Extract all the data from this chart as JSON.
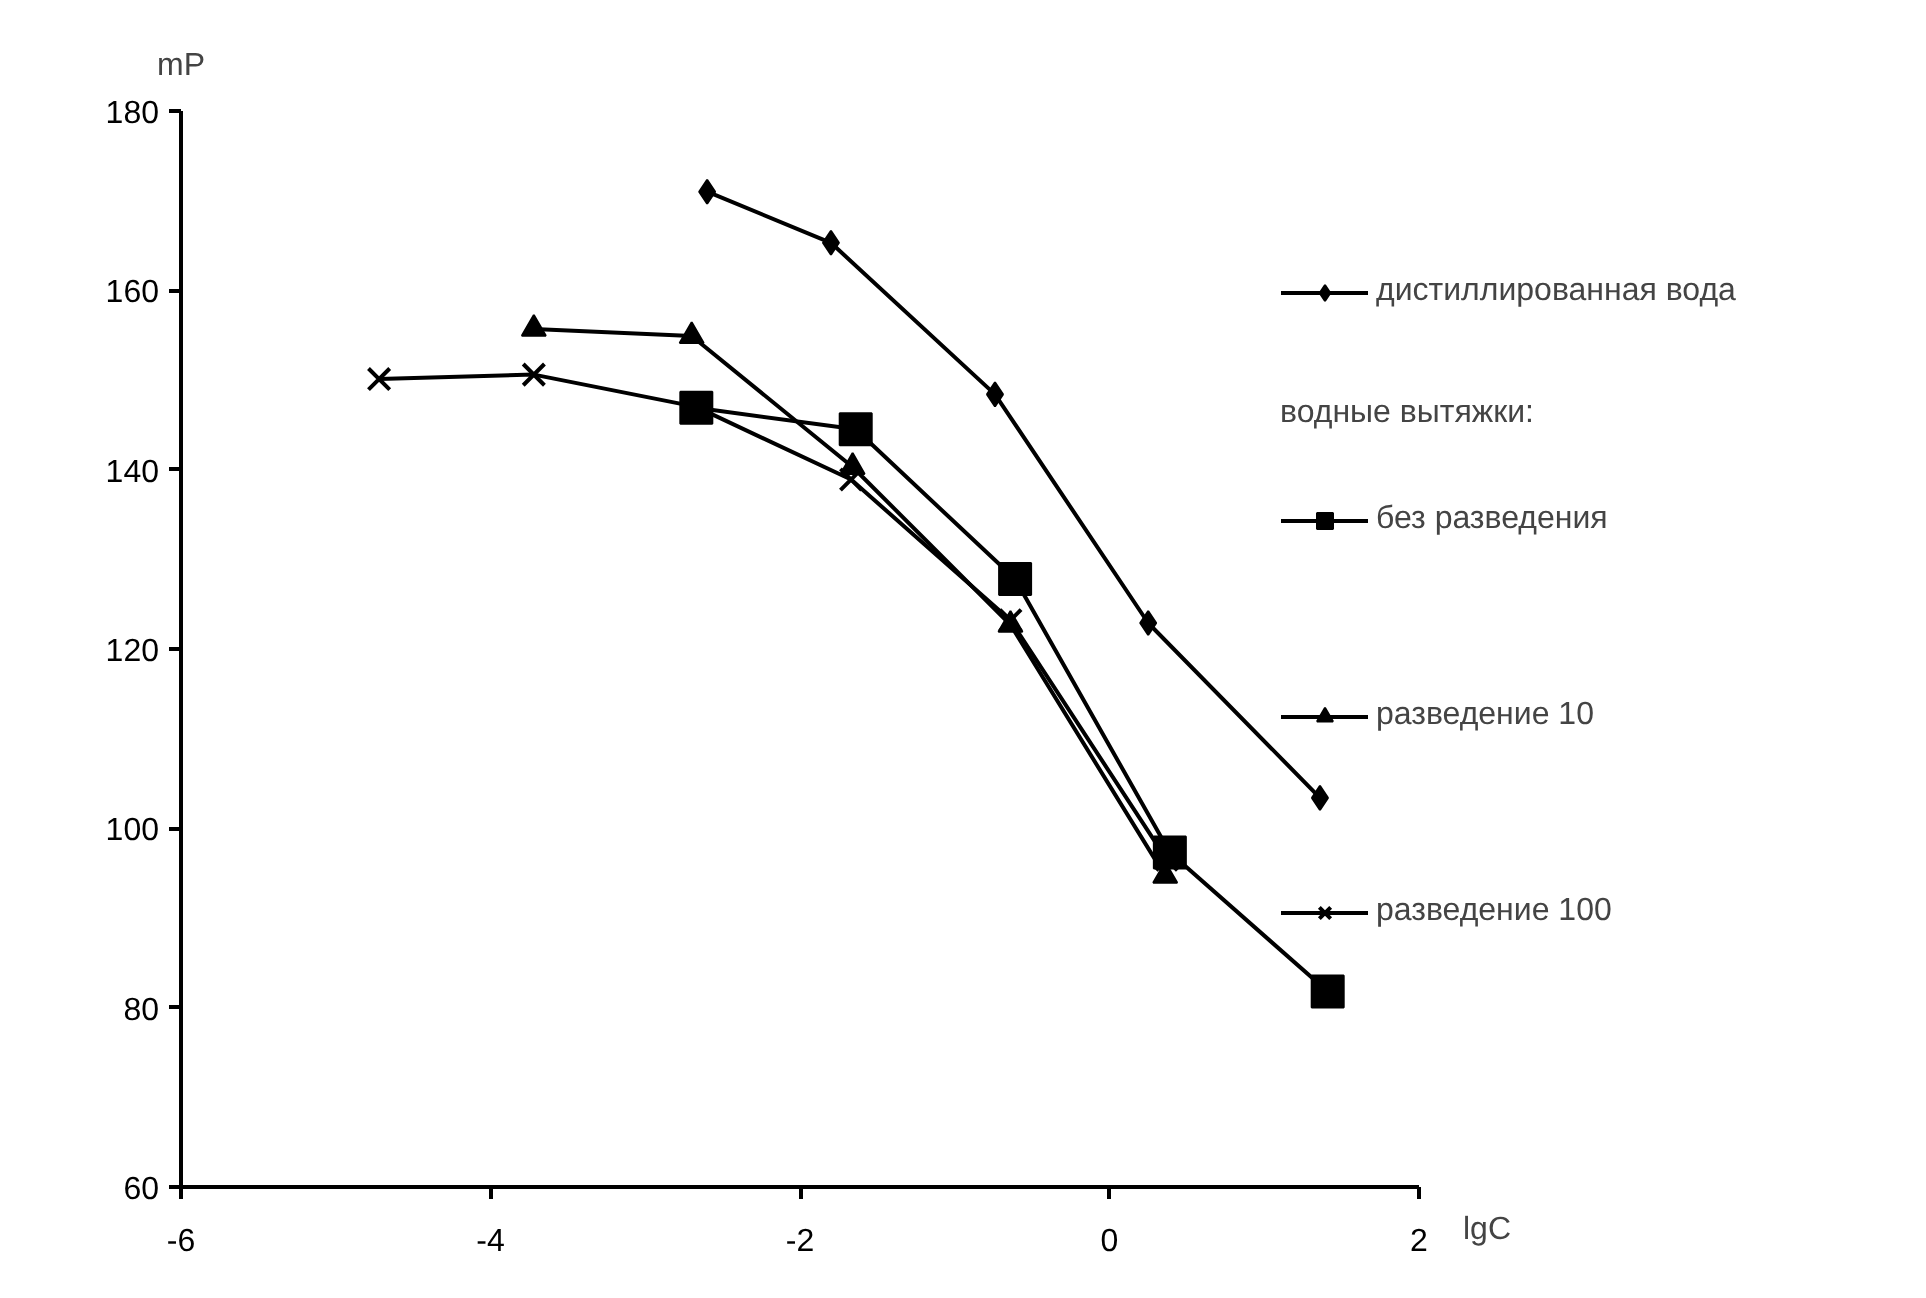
{
  "chart_data": {
    "type": "line",
    "xlabel": "lgC",
    "ylabel": "mP",
    "xlim": [
      -6,
      2
    ],
    "xticks": [
      -6,
      -4,
      -2,
      0,
      2
    ],
    "ylim": [
      60,
      180
    ],
    "yticks": [
      60,
      80,
      100,
      120,
      140,
      160,
      180
    ],
    "grid": false,
    "legend": "right",
    "legend_title": "водные вытяжки:",
    "line_style": "solid",
    "series": [
      {
        "name": "дистиллированная вода",
        "color": "#000000",
        "marker": "diamond",
        "x": [
          -2.6,
          -1.8,
          -0.74,
          0.25,
          1.36
        ],
        "values": [
          171,
          165.3,
          148.4,
          122.9,
          103.4
        ]
      },
      {
        "name": "без разведения",
        "color": "#000000",
        "marker": "square",
        "x": [
          -2.67,
          -1.64,
          -0.61,
          0.39,
          1.41
        ],
        "values": [
          146.9,
          144.5,
          127.8,
          97.3,
          81.8
        ]
      },
      {
        "name": "разведение 10",
        "color": "#000000",
        "marker": "triangle",
        "x": [
          -3.72,
          -2.7,
          -1.66,
          -0.64,
          0.36
        ],
        "values": [
          155.7,
          154.9,
          140.3,
          122.7,
          94.7
        ]
      },
      {
        "name": "разведение 100",
        "color": "#000000",
        "marker": "cross",
        "x": [
          -4.72,
          -3.72,
          -2.67,
          -1.67,
          -0.64,
          0.37
        ],
        "values": [
          150.1,
          150.6,
          147,
          138.9,
          123.2,
          96.5
        ]
      }
    ]
  }
}
